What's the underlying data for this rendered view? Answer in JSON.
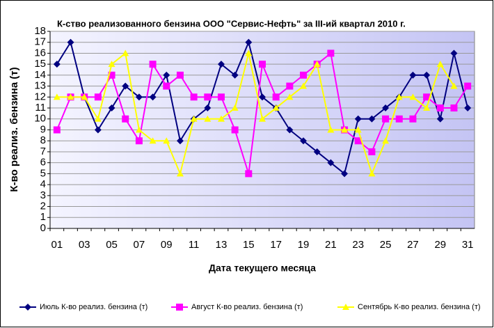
{
  "chart_data": {
    "type": "line",
    "title": "К-ство реализованного бензина ООО \"Сервис-Нефть\" за III-ий квартал 2010 г.",
    "xlabel": "Дата текущего месяца",
    "ylabel": "К-во реализ. бензина (т)",
    "categories": [
      "01",
      null,
      "03",
      null,
      "05",
      null,
      "07",
      null,
      "09",
      null,
      "11",
      null,
      "13",
      null,
      "15",
      null,
      "17",
      null,
      "19",
      null,
      "21",
      null,
      "23",
      null,
      "25",
      null,
      "27",
      null,
      "29",
      null,
      "31"
    ],
    "series": [
      {
        "name": "Июль К-во реализ. бензина (т)",
        "color": "#000080",
        "marker": "diamond",
        "values": [
          15,
          17,
          12,
          9,
          11,
          13,
          12,
          12,
          14,
          8,
          10,
          11,
          15,
          14,
          17,
          12,
          11,
          9,
          8,
          7,
          6,
          5,
          10,
          10,
          11,
          12,
          14,
          14,
          10,
          16,
          11
        ]
      },
      {
        "name": "Август К-во реализ. бензина (т)",
        "color": "#ff00ff",
        "marker": "square",
        "values": [
          9,
          12,
          12,
          12,
          14,
          10,
          8,
          15,
          13,
          14,
          12,
          12,
          12,
          9,
          5,
          15,
          12,
          13,
          14,
          15,
          16,
          9,
          8,
          7,
          10,
          10,
          10,
          12,
          11,
          11,
          13
        ]
      },
      {
        "name": "Сентябрь К-во реализ. бензина (т)",
        "color": "#ffff00",
        "marker": "triangle",
        "values": [
          12,
          12,
          12,
          10,
          15,
          16,
          9,
          8,
          8,
          5,
          10,
          10,
          10,
          11,
          16,
          10,
          11,
          12,
          13,
          15,
          9,
          9,
          9,
          5,
          8,
          12,
          12,
          11,
          15,
          13,
          null
        ]
      }
    ],
    "ylim": [
      0,
      18
    ],
    "yticks": [
      0,
      1,
      2,
      3,
      4,
      5,
      6,
      7,
      8,
      9,
      10,
      11,
      12,
      13,
      14,
      15,
      16,
      17,
      18
    ],
    "grid": true,
    "legend": "bottom"
  }
}
